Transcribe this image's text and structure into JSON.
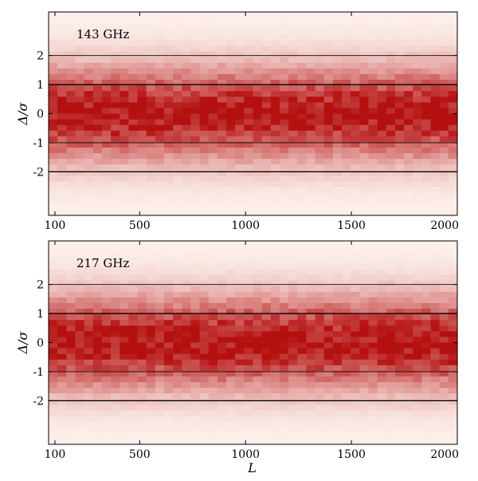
{
  "chart_data": [
    {
      "type": "heatmap",
      "annotation": "143 GHz",
      "xlabel": "",
      "ylabel": "Δ/σ",
      "xlim": [
        70,
        2000
      ],
      "ylim": [
        -3.5,
        3.5
      ],
      "x_ticks": [
        100,
        500,
        1000,
        1500,
        2000
      ],
      "x_tick_labels": [
        "100",
        "500",
        "1000",
        "1500",
        "2000"
      ],
      "y_ticks": [
        2,
        1,
        0,
        -1,
        -2
      ],
      "y_tick_labels": [
        "2",
        "1",
        "0",
        "-1",
        "-2"
      ],
      "reference_lines": [
        2,
        1,
        -1,
        -2
      ],
      "density_peak_at": 0,
      "density_width_sigma": 1,
      "colormap": [
        "#fdf1ec",
        "#b51010"
      ],
      "grid": false
    },
    {
      "type": "heatmap",
      "annotation": "217 GHz",
      "xlabel": "L",
      "ylabel": "Δ/σ",
      "xlim": [
        70,
        2000
      ],
      "ylim": [
        -3.5,
        3.5
      ],
      "x_ticks": [
        100,
        500,
        1000,
        1500,
        2000
      ],
      "x_tick_labels": [
        "100",
        "500",
        "1000",
        "1500",
        "2000"
      ],
      "y_ticks": [
        2,
        1,
        0,
        -1,
        -2
      ],
      "y_tick_labels": [
        "2",
        "1",
        "0",
        "-1",
        "-2"
      ],
      "reference_lines": [
        2,
        1,
        -1,
        -2
      ],
      "density_peak_at": 0,
      "density_width_sigma": 1,
      "colormap": [
        "#fdf1ec",
        "#b51010"
      ],
      "grid": false
    }
  ]
}
